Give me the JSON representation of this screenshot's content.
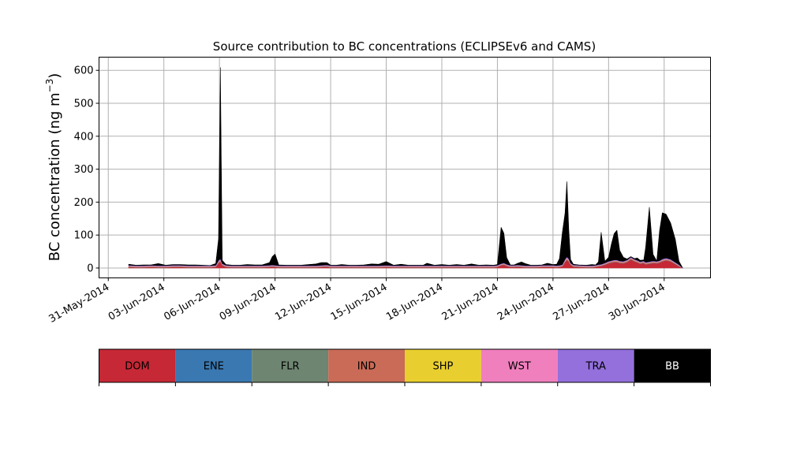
{
  "chart_data": {
    "type": "area",
    "stacked": true,
    "title": "Source contribution to BC concentrations (ECLIPSEv6 and CAMS)",
    "ylabel_prefix": "BC concentration (ng m",
    "ylabel_exp": "−3",
    "ylabel_suffix": ")",
    "ylim": [
      -30,
      640
    ],
    "yticks": [
      0,
      100,
      200,
      300,
      400,
      500,
      600
    ],
    "xlim_days": [
      -0.5,
      32.5
    ],
    "grid": true,
    "xticks": [
      {
        "day": 0,
        "label": "31-May-2014"
      },
      {
        "day": 3,
        "label": "03-Jun-2014"
      },
      {
        "day": 6,
        "label": "06-Jun-2014"
      },
      {
        "day": 9,
        "label": "09-Jun-2014"
      },
      {
        "day": 12,
        "label": "12-Jun-2014"
      },
      {
        "day": 15,
        "label": "15-Jun-2014"
      },
      {
        "day": 18,
        "label": "18-Jun-2014"
      },
      {
        "day": 21,
        "label": "21-Jun-2014"
      },
      {
        "day": 24,
        "label": "24-Jun-2014"
      },
      {
        "day": 27,
        "label": "27-Jun-2014"
      },
      {
        "day": 30,
        "label": "30-Jun-2014"
      }
    ],
    "x": [
      1.1,
      1.5,
      1.9,
      2.3,
      2.7,
      3.1,
      3.5,
      3.9,
      4.3,
      4.7,
      5.1,
      5.5,
      5.8,
      5.95,
      6.05,
      6.15,
      6.35,
      6.7,
      7.1,
      7.5,
      7.9,
      8.3,
      8.7,
      8.85,
      9.0,
      9.2,
      9.6,
      10.0,
      10.4,
      10.8,
      11.2,
      11.5,
      11.8,
      12.0,
      12.3,
      12.6,
      13.0,
      13.4,
      13.8,
      14.2,
      14.6,
      15.0,
      15.4,
      15.8,
      16.2,
      16.6,
      17.0,
      17.2,
      17.6,
      18.0,
      18.4,
      18.8,
      19.2,
      19.6,
      20.0,
      20.4,
      20.8,
      21.0,
      21.2,
      21.35,
      21.5,
      21.7,
      21.9,
      22.1,
      22.3,
      22.5,
      22.8,
      23.1,
      23.4,
      23.7,
      24.0,
      24.2,
      24.35,
      24.5,
      24.65,
      24.75,
      24.85,
      24.95,
      25.1,
      25.4,
      25.8,
      26.1,
      26.3,
      26.45,
      26.6,
      26.8,
      27.0,
      27.15,
      27.3,
      27.45,
      27.6,
      27.8,
      28.0,
      28.2,
      28.4,
      28.55,
      28.7,
      28.9,
      29.0,
      29.2,
      29.4,
      29.6,
      29.75,
      29.9,
      30.1,
      30.35,
      30.6,
      30.8,
      31.0
    ],
    "series": [
      {
        "name": "DOM",
        "color": "#c62836",
        "values": [
          3,
          2,
          2,
          3,
          2,
          2,
          3,
          3,
          2,
          2,
          2,
          2,
          3,
          15,
          20,
          8,
          3,
          2,
          2,
          2,
          2,
          2,
          3,
          4,
          3,
          2,
          2,
          2,
          2,
          2,
          2,
          3,
          4,
          2,
          2,
          2,
          2,
          2,
          2,
          2,
          2,
          3,
          2,
          2,
          2,
          2,
          2,
          2,
          2,
          2,
          2,
          2,
          2,
          2,
          2,
          2,
          2,
          3,
          8,
          10,
          6,
          3,
          3,
          4,
          3,
          2,
          2,
          2,
          3,
          3,
          3,
          2,
          3,
          5,
          18,
          25,
          20,
          10,
          4,
          3,
          2,
          2,
          3,
          5,
          6,
          10,
          14,
          16,
          18,
          18,
          15,
          14,
          18,
          26,
          20,
          17,
          13,
          15,
          11,
          13,
          15,
          14,
          16,
          20,
          23,
          20,
          12,
          5,
          0
        ]
      },
      {
        "name": "ENE",
        "color": "#3a78b1",
        "values": [
          0.5,
          0.5,
          0.5,
          0.5,
          0.5,
          0.5,
          0.5,
          0.5,
          0.5,
          0.5,
          0.5,
          0.5,
          0.5,
          0.5,
          0.5,
          0.5,
          0.5,
          0.5,
          0.5,
          0.5,
          0.5,
          0.5,
          0.5,
          0.5,
          0.5,
          0.5,
          0.5,
          0.5,
          0.5,
          0.5,
          0.5,
          0.5,
          0.5,
          0.5,
          0.5,
          0.5,
          0.5,
          0.5,
          0.5,
          0.5,
          0.5,
          0.5,
          0.5,
          0.5,
          0.5,
          0.5,
          0.5,
          0.5,
          0.5,
          0.5,
          0.5,
          0.5,
          0.5,
          0.5,
          0.5,
          0.5,
          0.5,
          0.5,
          0.5,
          0.5,
          0.5,
          0.5,
          0.5,
          0.5,
          0.5,
          0.5,
          0.5,
          0.5,
          0.5,
          0.5,
          0.5,
          0.5,
          0.5,
          0.5,
          0.5,
          0.5,
          0.5,
          0.5,
          0.5,
          0.5,
          0.5,
          0.5,
          0.5,
          0.5,
          0.5,
          0.5,
          0.5,
          0.5,
          0.5,
          0.5,
          0.5,
          0.5,
          0.5,
          0.5,
          0.5,
          0.5,
          0.5,
          0.5,
          0.5,
          0.5,
          0.5,
          0.5,
          0.5,
          0.5,
          0.5,
          0.5,
          0.5,
          0.5,
          0
        ]
      },
      {
        "name": "FLR",
        "color": "#6e8571",
        "values": [
          0.5,
          0.5,
          0.5,
          0.5,
          0.5,
          0.5,
          0.5,
          0.5,
          0.5,
          0.5,
          0.5,
          0.5,
          0.5,
          0.5,
          0.5,
          0.5,
          0.5,
          0.5,
          0.5,
          0.5,
          0.5,
          0.5,
          0.5,
          0.5,
          0.5,
          0.5,
          0.5,
          0.5,
          0.5,
          0.5,
          0.5,
          0.5,
          0.5,
          0.5,
          0.5,
          0.5,
          0.5,
          0.5,
          0.5,
          0.5,
          0.5,
          0.5,
          0.5,
          0.5,
          0.5,
          0.5,
          0.5,
          0.5,
          0.5,
          0.5,
          0.5,
          0.5,
          0.5,
          0.5,
          0.5,
          0.5,
          0.5,
          0.5,
          0.5,
          0.5,
          0.5,
          0.5,
          0.5,
          0.5,
          0.5,
          0.5,
          0.5,
          0.5,
          0.5,
          0.5,
          0.5,
          0.5,
          0.5,
          0.5,
          0.5,
          0.5,
          0.5,
          0.5,
          0.5,
          0.5,
          0.5,
          0.5,
          0.5,
          0.5,
          0.5,
          0.5,
          0.5,
          0.5,
          0.5,
          0.5,
          0.5,
          0.5,
          0.5,
          0.5,
          0.5,
          0.5,
          0.5,
          0.5,
          0.5,
          0.5,
          0.5,
          0.5,
          0.5,
          0.5,
          0.5,
          0.5,
          0.5,
          0.5,
          0
        ]
      },
      {
        "name": "IND",
        "color": "#c96b57",
        "values": [
          1,
          1,
          1,
          1,
          1,
          1,
          1,
          1,
          1,
          1,
          1,
          1,
          1,
          2,
          2,
          1,
          1,
          1,
          1,
          1,
          1,
          1,
          1,
          1,
          1,
          1,
          1,
          1,
          1,
          1,
          1,
          1,
          1,
          1,
          1,
          1,
          1,
          1,
          1,
          1,
          1,
          1,
          1,
          1,
          1,
          1,
          1,
          1,
          1,
          1,
          1,
          1,
          1,
          1,
          1,
          1,
          1,
          1,
          1,
          1,
          1,
          1,
          1,
          1,
          1,
          1,
          1,
          1,
          1,
          1,
          1,
          1,
          1,
          1,
          2,
          2,
          2,
          1,
          1,
          1,
          1,
          1,
          1,
          1,
          1,
          1,
          2,
          2,
          2,
          2,
          2,
          2,
          2,
          2,
          2,
          2,
          2,
          2,
          2,
          2,
          2,
          2,
          2,
          2,
          2,
          2,
          1,
          1,
          0
        ]
      },
      {
        "name": "SHP",
        "color": "#e8cf2f",
        "values": [
          0.5,
          0.5,
          0.5,
          0.5,
          0.5,
          0.5,
          0.5,
          0.5,
          0.5,
          0.5,
          0.5,
          0.5,
          0.5,
          0.5,
          0.5,
          0.5,
          0.5,
          0.5,
          0.5,
          0.5,
          0.5,
          0.5,
          0.5,
          0.5,
          0.5,
          0.5,
          0.5,
          0.5,
          0.5,
          0.5,
          0.5,
          0.5,
          0.5,
          0.5,
          0.5,
          0.5,
          0.5,
          0.5,
          0.5,
          0.5,
          0.5,
          0.5,
          0.5,
          0.5,
          0.5,
          0.5,
          0.5,
          0.5,
          0.5,
          0.5,
          0.5,
          0.5,
          0.5,
          0.5,
          0.5,
          0.5,
          0.5,
          0.5,
          0.5,
          0.5,
          0.5,
          0.5,
          0.5,
          0.5,
          0.5,
          0.5,
          0.5,
          0.5,
          0.5,
          0.5,
          0.5,
          0.5,
          0.5,
          0.5,
          0.5,
          0.5,
          0.5,
          0.5,
          0.5,
          0.5,
          0.5,
          0.5,
          0.5,
          0.5,
          0.5,
          0.5,
          0.5,
          0.5,
          0.5,
          0.5,
          0.5,
          0.5,
          0.5,
          0.5,
          0.5,
          0.5,
          0.5,
          0.5,
          0.5,
          0.5,
          0.5,
          0.5,
          0.5,
          0.5,
          0.5,
          0.5,
          0.5,
          0.5,
          0
        ]
      },
      {
        "name": "WST",
        "color": "#f07fbe",
        "values": [
          1,
          1,
          1,
          1,
          1,
          1,
          1,
          1,
          1,
          1,
          1,
          1,
          1,
          2,
          2,
          1,
          1,
          1,
          1,
          1,
          1,
          1,
          1,
          1,
          1,
          1,
          1,
          1,
          1,
          1,
          1,
          1,
          1,
          1,
          1,
          1,
          1,
          1,
          1,
          1,
          1,
          1,
          1,
          1,
          1,
          1,
          1,
          1,
          1,
          1,
          1,
          1,
          1,
          1,
          1,
          1,
          1,
          1,
          1,
          1,
          1,
          1,
          1,
          1,
          1,
          1,
          1,
          1,
          1,
          1,
          1,
          1,
          1,
          1,
          2,
          3,
          2,
          1,
          1,
          1,
          1,
          1,
          1,
          1,
          1,
          1,
          1,
          1,
          1,
          1,
          1,
          1,
          1,
          1,
          1,
          1,
          1,
          1,
          1,
          1,
          1,
          1,
          1,
          1,
          1,
          1,
          1,
          1,
          0
        ]
      },
      {
        "name": "TRA",
        "color": "#9370db",
        "values": [
          2,
          2,
          2,
          2,
          2,
          2,
          2,
          2,
          2,
          2,
          2,
          2,
          2,
          3,
          3,
          2,
          2,
          2,
          2,
          2,
          2,
          2,
          2,
          2,
          2,
          2,
          2,
          2,
          2,
          2,
          2,
          2,
          2,
          2,
          2,
          2,
          2,
          2,
          2,
          2,
          2,
          2,
          2,
          2,
          2,
          2,
          2,
          2,
          2,
          2,
          2,
          2,
          2,
          2,
          2,
          2,
          2,
          2,
          2,
          2,
          2,
          2,
          2,
          2,
          2,
          2,
          2,
          2,
          2,
          2,
          2,
          2,
          2,
          2,
          3,
          3,
          3,
          2,
          2,
          2,
          2,
          2,
          2,
          2,
          2,
          2,
          2,
          2,
          2,
          2,
          2,
          2,
          2,
          3,
          2,
          2,
          2,
          2,
          2,
          2,
          2,
          2,
          2,
          3,
          3,
          2,
          2,
          2,
          0
        ]
      },
      {
        "name": "BB",
        "color": "#000000",
        "values": [
          3,
          1,
          2,
          1,
          6,
          1,
          2,
          2,
          2,
          2,
          1,
          0,
          5,
          65,
          580,
          10,
          2,
          1,
          1,
          3,
          2,
          2,
          8,
          25,
          34,
          2,
          1,
          1,
          1,
          3,
          5,
          8,
          7,
          1,
          1,
          3,
          1,
          1,
          2,
          5,
          4,
          11,
          1,
          4,
          1,
          1,
          1,
          7,
          1,
          3,
          1,
          3,
          1,
          5,
          1,
          2,
          1,
          2,
          110,
          90,
          20,
          1,
          1,
          5,
          10,
          6,
          1,
          1,
          1,
          6,
          2,
          4,
          20,
          95,
          140,
          228,
          90,
          10,
          2,
          1,
          1,
          3,
          1,
          8,
          97,
          5,
          12,
          50,
          80,
          90,
          32,
          12,
          3,
          1,
          2,
          7,
          4,
          3,
          45,
          165,
          20,
          1,
          90,
          140,
          133,
          110,
          70,
          10,
          0
        ]
      }
    ]
  },
  "legend": {
    "items": [
      {
        "label": "DOM",
        "color": "#c62836",
        "text_color": "#000000"
      },
      {
        "label": "ENE",
        "color": "#3a78b1",
        "text_color": "#000000"
      },
      {
        "label": "FLR",
        "color": "#6e8571",
        "text_color": "#000000"
      },
      {
        "label": "IND",
        "color": "#c96b57",
        "text_color": "#000000"
      },
      {
        "label": "SHP",
        "color": "#e8cf2f",
        "text_color": "#000000"
      },
      {
        "label": "WST",
        "color": "#f07fbe",
        "text_color": "#000000"
      },
      {
        "label": "TRA",
        "color": "#9370db",
        "text_color": "#000000"
      },
      {
        "label": "BB",
        "color": "#000000",
        "text_color": "#ffffff"
      }
    ]
  }
}
